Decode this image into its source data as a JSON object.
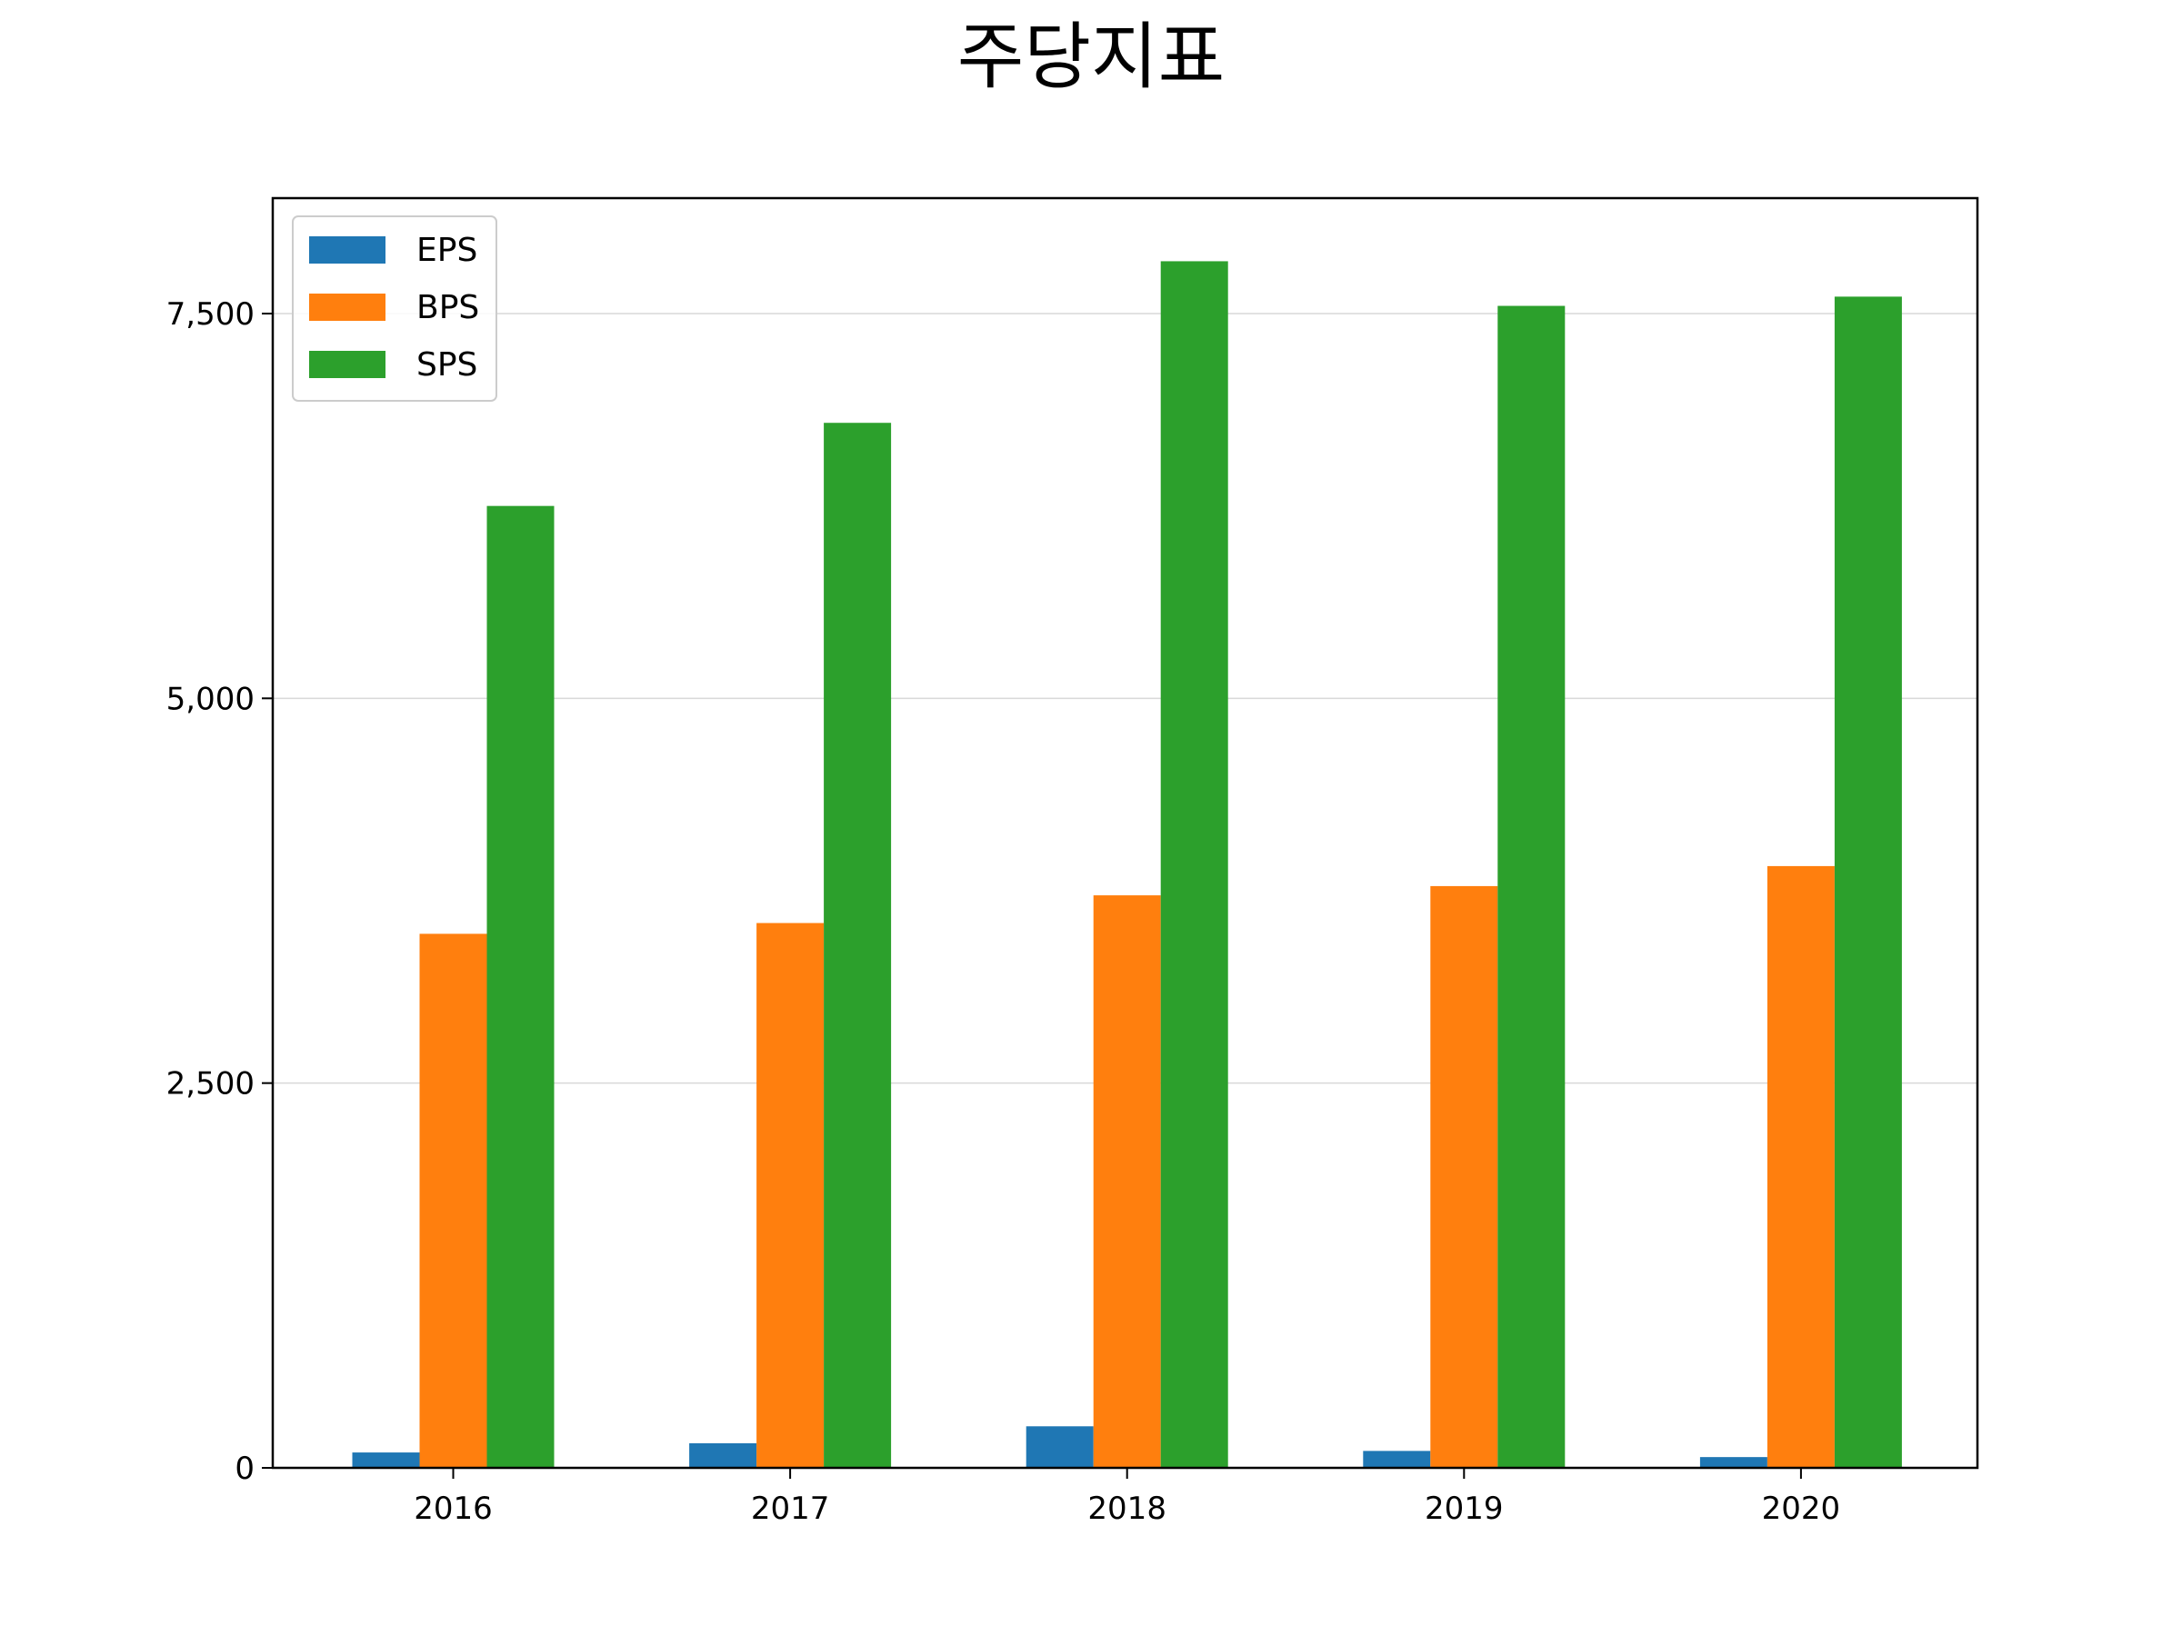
{
  "chart_data": {
    "type": "bar",
    "title": "주당지표",
    "xlabel": "",
    "ylabel": "",
    "categories": [
      "2016",
      "2017",
      "2018",
      "2019",
      "2020"
    ],
    "series": [
      {
        "name": "EPS",
        "color": "#1f77b4",
        "values": [
          100,
          160,
          270,
          110,
          70
        ]
      },
      {
        "name": "BPS",
        "color": "#ff7f0e",
        "values": [
          3470,
          3540,
          3720,
          3780,
          3910
        ]
      },
      {
        "name": "SPS",
        "color": "#2ca02c",
        "values": [
          6250,
          6790,
          7840,
          7550,
          7610
        ]
      }
    ],
    "ylim": [
      0,
      8250
    ],
    "yticks": [
      0,
      2500,
      5000,
      7500
    ],
    "ytick_labels": [
      "0",
      "2,500",
      "5,000",
      "7,500"
    ],
    "grid": "horizontal",
    "legend_position": "upper-left"
  }
}
